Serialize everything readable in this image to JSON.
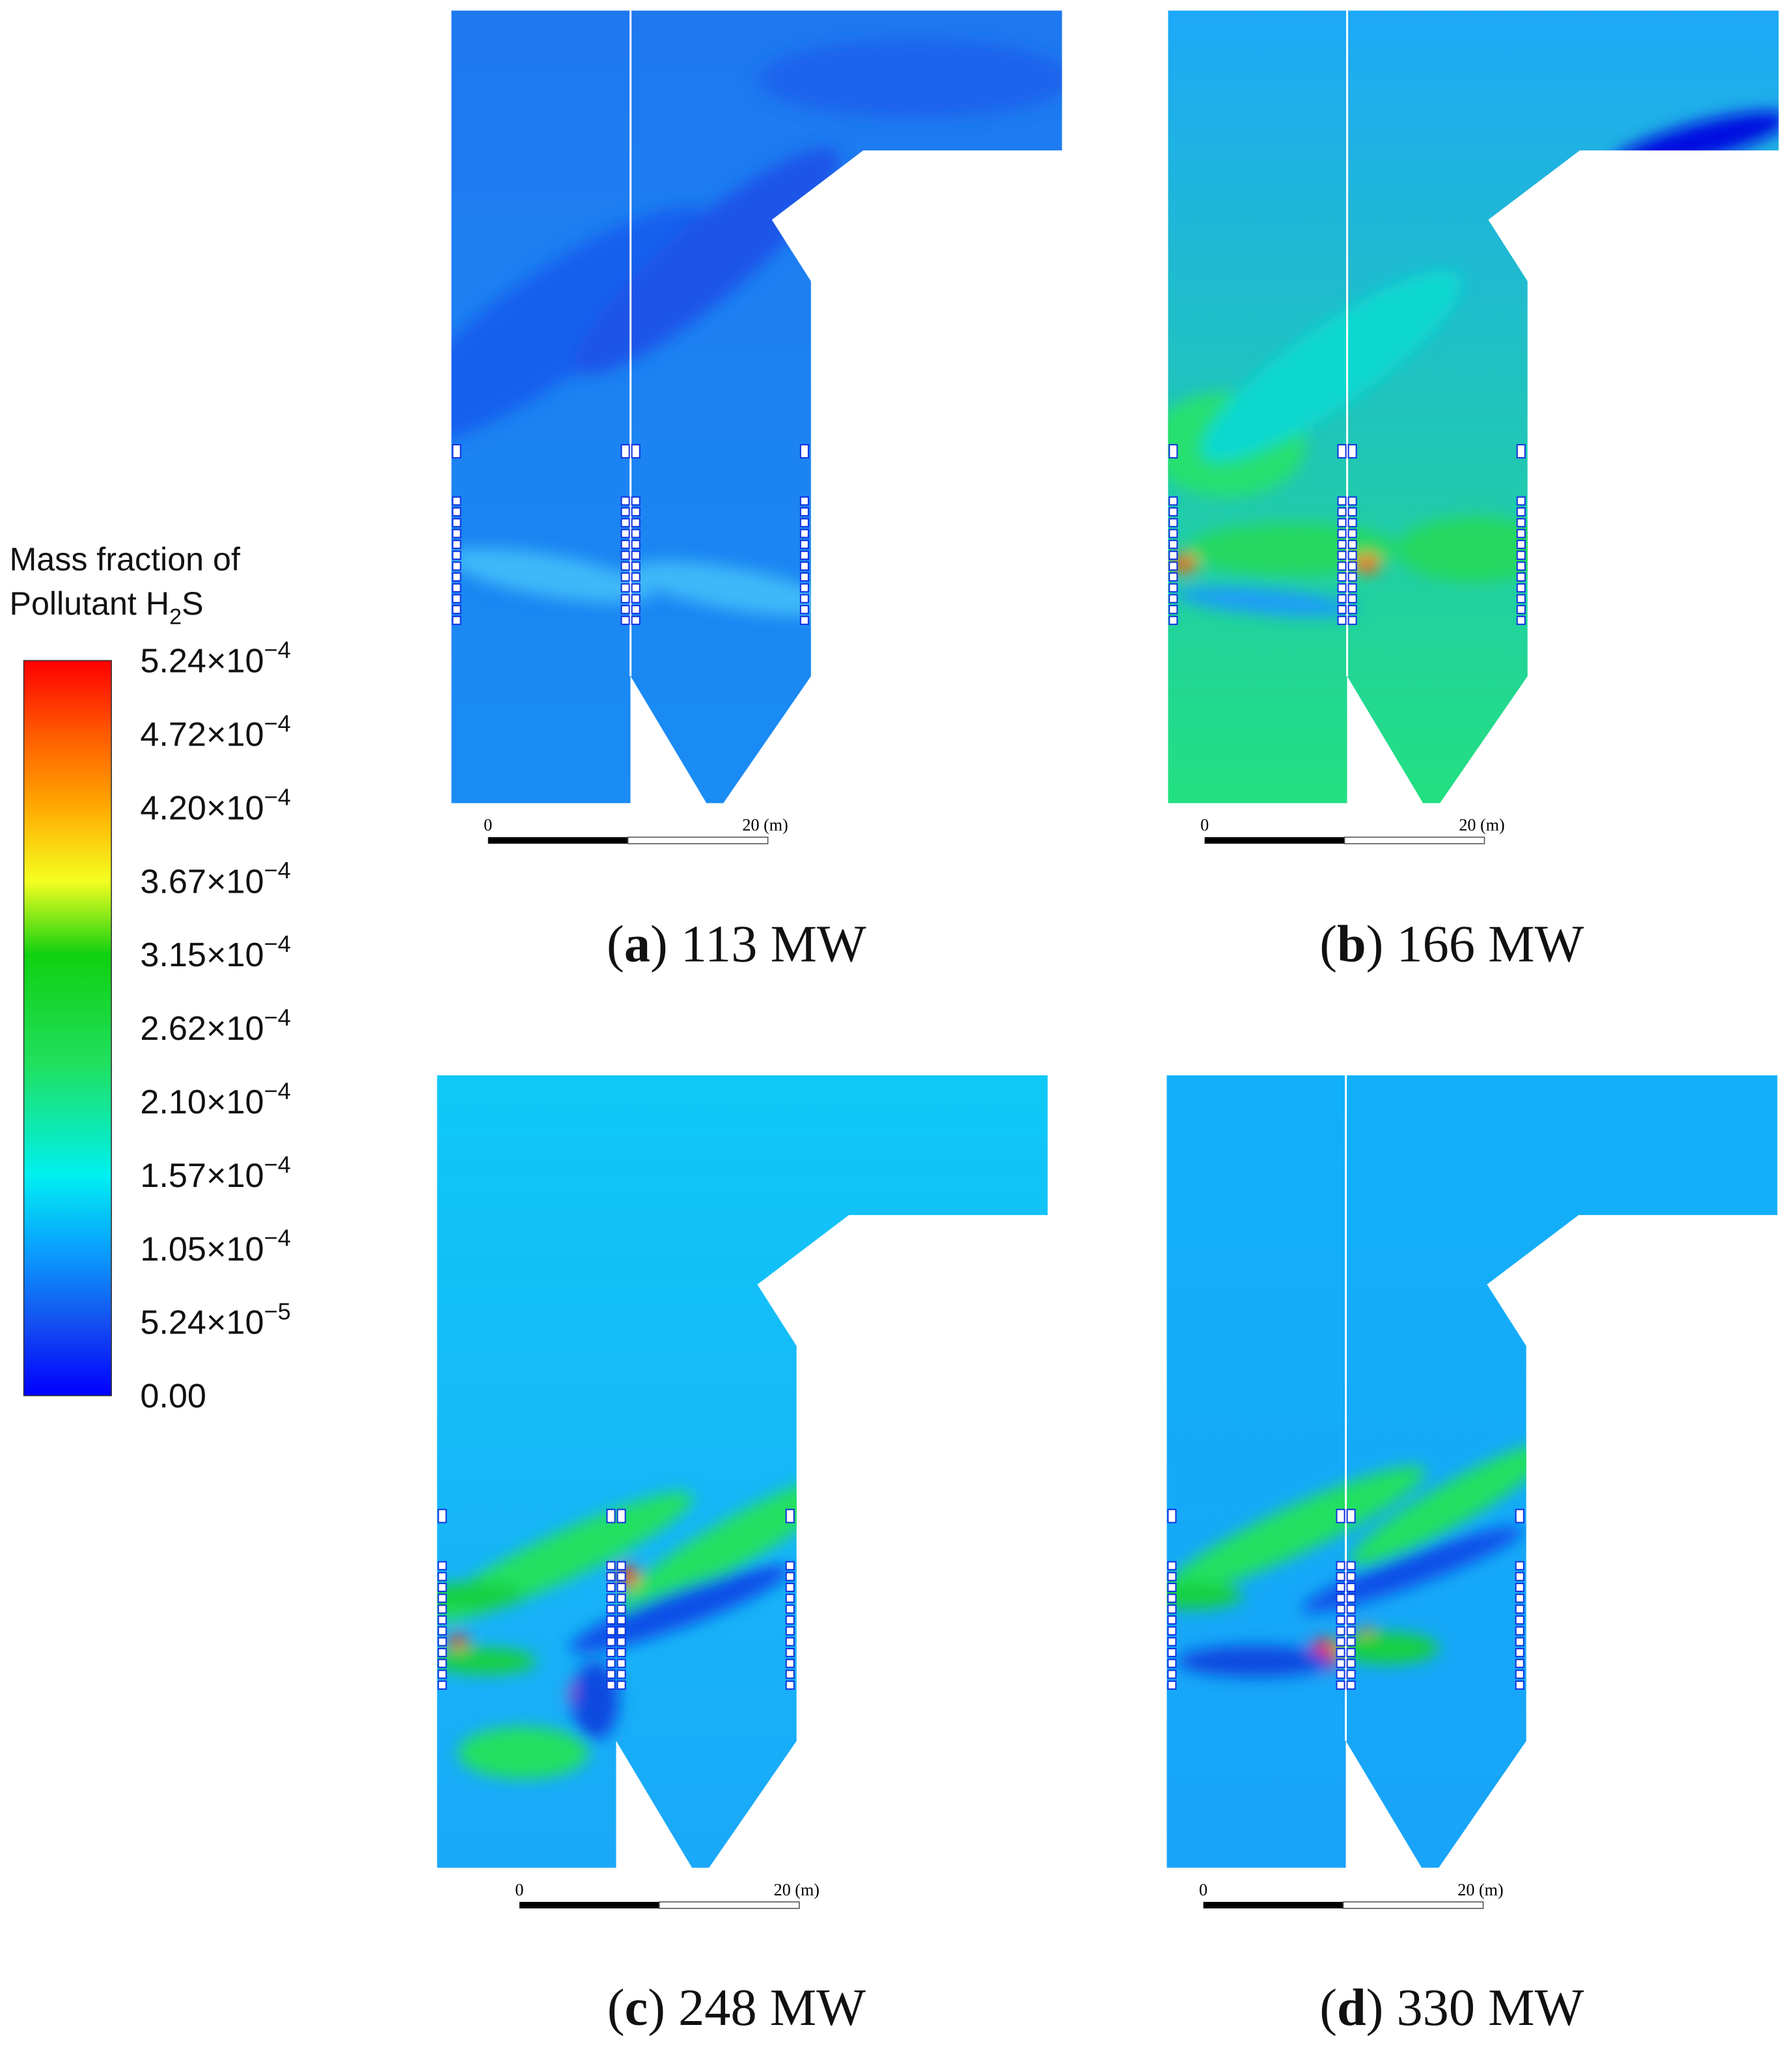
{
  "legend": {
    "title_line1": "Mass fraction of",
    "title_line2": "Pollutant H",
    "title_sub": "2",
    "title_end": "S",
    "ticks": [
      {
        "mantissa": "5.24",
        "times": "×10",
        "exponent": "−4"
      },
      {
        "mantissa": "4.72",
        "times": "×10",
        "exponent": "−4"
      },
      {
        "mantissa": "4.20",
        "times": "×10",
        "exponent": "−4"
      },
      {
        "mantissa": "3.67",
        "times": "×10",
        "exponent": "−4"
      },
      {
        "mantissa": "3.15",
        "times": "×10",
        "exponent": "−4"
      },
      {
        "mantissa": "2.62",
        "times": "×10",
        "exponent": "−4"
      },
      {
        "mantissa": "2.10",
        "times": "×10",
        "exponent": "−4"
      },
      {
        "mantissa": "1.57",
        "times": "×10",
        "exponent": "−4"
      },
      {
        "mantissa": "1.05",
        "times": "×10",
        "exponent": "−4"
      },
      {
        "mantissa": "5.24",
        "times": "×10",
        "exponent": "−5"
      },
      {
        "mantissa": "0.00",
        "times": "",
        "exponent": ""
      }
    ]
  },
  "panels": [
    {
      "open": "(",
      "letter": "a",
      "close": ")",
      "power": "113 MW",
      "scale_start": "0",
      "scale_end": "20 (m)"
    },
    {
      "open": "(",
      "letter": "b",
      "close": ")",
      "power": "166 MW",
      "scale_start": "0",
      "scale_end": "20 (m)"
    },
    {
      "open": "(",
      "letter": "c",
      "close": ")",
      "power": "248 MW",
      "scale_start": "0",
      "scale_end": "20 (m)"
    },
    {
      "open": "(",
      "letter": "d",
      "close": ")",
      "power": "330 MW",
      "scale_start": "0",
      "scale_end": "20 (m)"
    }
  ]
}
